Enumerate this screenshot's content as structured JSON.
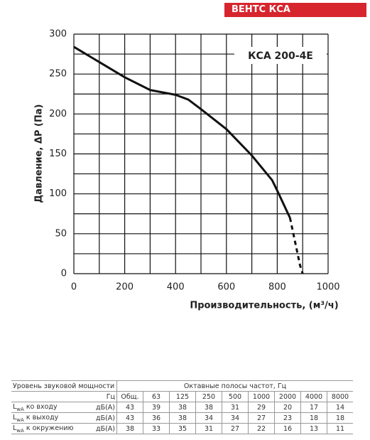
{
  "header": "ВЕНТС КСА",
  "chart_data": {
    "type": "line",
    "x_label": "Производительность, (м³/ч)",
    "y_label": "Давление, ΔP (Па)",
    "annotation": "КСА 200-4Е",
    "xlim": [
      0,
      1000
    ],
    "xticks": [
      0,
      200,
      400,
      600,
      800,
      1000
    ],
    "x_minor_ticks": [
      100,
      300,
      500,
      700,
      900
    ],
    "ylim": [
      0,
      300
    ],
    "yticks": [
      0,
      50,
      100,
      150,
      200,
      250,
      300
    ],
    "y_minor_ticks": [
      25,
      75,
      125,
      175,
      225,
      275
    ],
    "grid": true,
    "series": [
      {
        "color": "#111111",
        "dashed": false,
        "x": [
          0,
          100,
          200,
          300,
          400,
          450,
          500,
          600,
          700,
          780,
          800,
          850
        ],
        "values": [
          284,
          265,
          246,
          230,
          224,
          218,
          206,
          181,
          148,
          117,
          104,
          70
        ]
      },
      {
        "color": "#111111",
        "dashed": true,
        "x": [
          850,
          870,
          890,
          900
        ],
        "values": [
          70,
          40,
          10,
          0
        ]
      }
    ]
  },
  "table": {
    "title": "Уровень звуковой мощности",
    "bands_title": "Октавные полосы частот, Гц",
    "unit_header": "Гц",
    "columns": [
      "Общ.",
      "63",
      "125",
      "250",
      "500",
      "1000",
      "2000",
      "4000",
      "8000"
    ],
    "rows": [
      {
        "symbol": "L",
        "sub": "wA",
        "name": "ко входу",
        "unit": "дБ(А)",
        "values": [
          43,
          39,
          38,
          38,
          31,
          29,
          20,
          17,
          14
        ]
      },
      {
        "symbol": "L",
        "sub": "wA",
        "name": "к выходу",
        "unit": "дБ(А)",
        "values": [
          43,
          36,
          38,
          34,
          34,
          27,
          23,
          18,
          18
        ]
      },
      {
        "symbol": "L",
        "sub": "wA",
        "name": "к окружению",
        "unit": "дБ(А)",
        "values": [
          38,
          33,
          35,
          31,
          27,
          22,
          16,
          13,
          11
        ]
      }
    ]
  }
}
